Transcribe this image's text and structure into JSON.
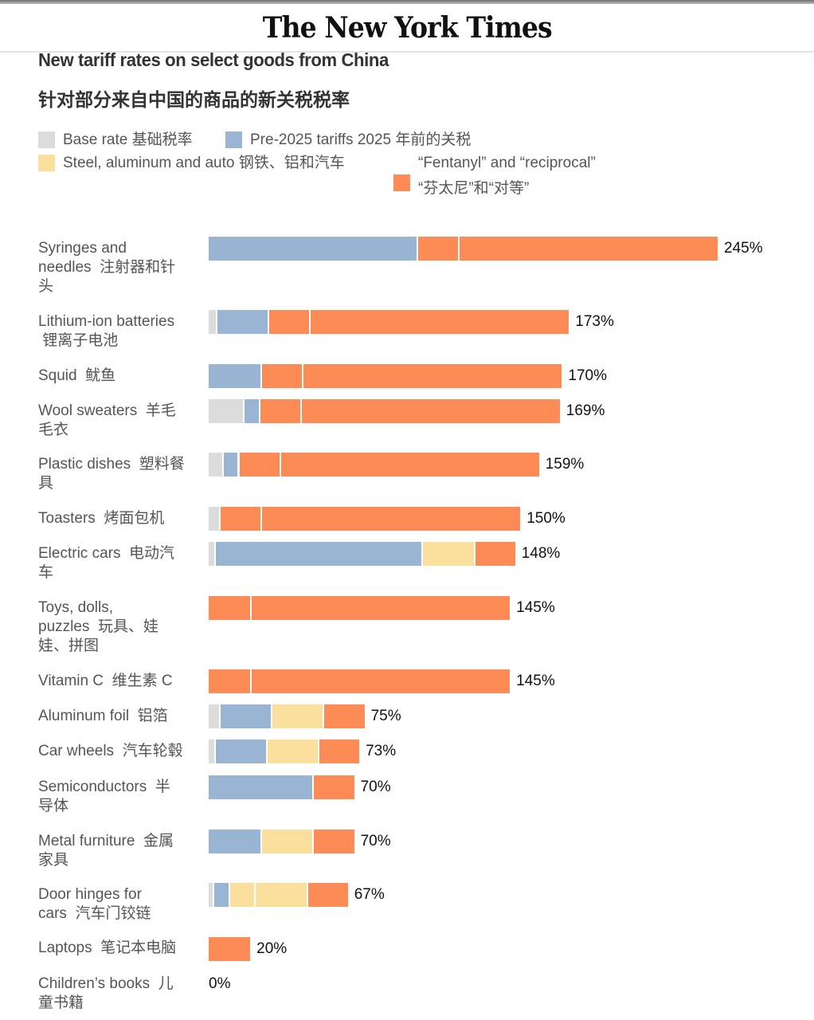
{
  "masthead": {
    "logo": "The New York Times"
  },
  "header": {
    "title": "New tariff rates on select goods from China",
    "subtitle": "针对部分来自中国的商品的新关税税率"
  },
  "colors": {
    "base": "#dcdcdc",
    "pre2025": "#9ab5d4",
    "steel": "#fbdf9c",
    "fentanyl_reciprocal": "#fd8b55",
    "divider": "#ffffff"
  },
  "chart_data": {
    "type": "bar",
    "orientation": "horizontal",
    "stacked": true,
    "title": "New tariff rates on select goods from China",
    "subtitle": "针对部分来自中国的商品的新关税税率",
    "xlabel": "",
    "ylabel": "",
    "xlim": [
      0,
      245
    ],
    "grid": false,
    "legend_position": "top-left",
    "legend": [
      {
        "key": "base",
        "label": "Base rate  基础税率"
      },
      {
        "key": "pre2025",
        "label": "Pre-2025 tariffs  2025 年前的关税"
      },
      {
        "key": "steel",
        "label": "Steel, aluminum and auto  钢铁、铝和汽车"
      },
      {
        "key": "fentanyl_reciprocal",
        "label": "“Fentanyl” and “reciprocal”",
        "label2": "“芬太尼”和“对等”"
      }
    ],
    "categories": [
      "Syringes and needles  注射器和针头",
      "Lithium-ion batteries  锂离子电池",
      "Squid  鱿鱼",
      "Wool sweaters  羊毛毛衣",
      "Plastic dishes  塑料餐具",
      "Toasters  烤面包机",
      "Electric cars  电动汽车",
      "Toys, dolls, puzzles  玩具、娃娃、拼图",
      "Vitamin C  维生素 C",
      "Aluminum foil  铝箔",
      "Car wheels  汽车轮毂",
      "Semiconductors  半导体",
      "Metal furniture  金属家具",
      "Door hinges for cars  汽车门铰链",
      "Laptops  笔记本电脑",
      "Children’s books  儿童书籍"
    ],
    "rows": [
      {
        "label": "Syringes and needles  注射器和针头",
        "total_label": "245%",
        "segments": [
          {
            "key": "pre2025",
            "value": 100
          },
          {
            "key": "fentanyl_reciprocal",
            "value": 20
          },
          {
            "key": "fentanyl_reciprocal",
            "value": 125
          }
        ]
      },
      {
        "label": "Lithium-ion batteries  锂离子电池",
        "total_label": "173%",
        "segments": [
          {
            "key": "base",
            "value": 3.4
          },
          {
            "key": "pre2025",
            "value": 25
          },
          {
            "key": "fentanyl_reciprocal",
            "value": 20
          },
          {
            "key": "fentanyl_reciprocal",
            "value": 125
          }
        ]
      },
      {
        "label": "Squid  鱿鱼",
        "total_label": "170%",
        "segments": [
          {
            "key": "pre2025",
            "value": 25
          },
          {
            "key": "fentanyl_reciprocal",
            "value": 20
          },
          {
            "key": "fentanyl_reciprocal",
            "value": 125
          }
        ]
      },
      {
        "label": "Wool sweaters  羊毛毛衣",
        "total_label": "169%",
        "segments": [
          {
            "key": "base",
            "value": 16.5
          },
          {
            "key": "pre2025",
            "value": 7.5
          },
          {
            "key": "fentanyl_reciprocal",
            "value": 20
          },
          {
            "key": "fentanyl_reciprocal",
            "value": 125
          }
        ]
      },
      {
        "label": "Plastic dishes  塑料餐具",
        "total_label": "159%",
        "segments": [
          {
            "key": "base",
            "value": 6.5
          },
          {
            "key": "pre2025",
            "value": 7.5
          },
          {
            "key": "fentanyl_reciprocal",
            "value": 20
          },
          {
            "key": "fentanyl_reciprocal",
            "value": 125
          }
        ]
      },
      {
        "label": "Toasters  烤面包机",
        "total_label": "150%",
        "segments": [
          {
            "key": "base",
            "value": 5
          },
          {
            "key": "fentanyl_reciprocal",
            "value": 20
          },
          {
            "key": "fentanyl_reciprocal",
            "value": 125
          }
        ]
      },
      {
        "label": "Electric cars  电动汽车",
        "total_label": "148%",
        "segments": [
          {
            "key": "base",
            "value": 2.5
          },
          {
            "key": "pre2025",
            "value": 100
          },
          {
            "key": "steel",
            "value": 25
          },
          {
            "key": "fentanyl_reciprocal",
            "value": 20
          }
        ]
      },
      {
        "label": "Toys, dolls, puzzles  玩具、娃娃、拼图",
        "total_label": "145%",
        "segments": [
          {
            "key": "fentanyl_reciprocal",
            "value": 20
          },
          {
            "key": "fentanyl_reciprocal",
            "value": 125
          }
        ]
      },
      {
        "label": "Vitamin C  维生素 C",
        "total_label": "145%",
        "segments": [
          {
            "key": "fentanyl_reciprocal",
            "value": 20
          },
          {
            "key": "fentanyl_reciprocal",
            "value": 125
          }
        ]
      },
      {
        "label": "Aluminum foil  铝箔",
        "total_label": "75%",
        "segments": [
          {
            "key": "base",
            "value": 5
          },
          {
            "key": "pre2025",
            "value": 25
          },
          {
            "key": "steel",
            "value": 25
          },
          {
            "key": "fentanyl_reciprocal",
            "value": 20
          }
        ]
      },
      {
        "label": "Car wheels  汽车轮毂",
        "total_label": "73%",
        "segments": [
          {
            "key": "base",
            "value": 2.5
          },
          {
            "key": "pre2025",
            "value": 25
          },
          {
            "key": "steel",
            "value": 25
          },
          {
            "key": "fentanyl_reciprocal",
            "value": 20
          }
        ]
      },
      {
        "label": "Semiconductors  半导体",
        "total_label": "70%",
        "segments": [
          {
            "key": "pre2025",
            "value": 50
          },
          {
            "key": "fentanyl_reciprocal",
            "value": 20
          }
        ]
      },
      {
        "label": "Metal furniture  金属家具",
        "total_label": "70%",
        "segments": [
          {
            "key": "pre2025",
            "value": 25
          },
          {
            "key": "steel",
            "value": 25
          },
          {
            "key": "fentanyl_reciprocal",
            "value": 20
          }
        ]
      },
      {
        "label": "Door hinges for cars  汽车门铰链",
        "total_label": "67%",
        "segments": [
          {
            "key": "base",
            "value": 2
          },
          {
            "key": "pre2025",
            "value": 7.5
          },
          {
            "key": "steel",
            "value": 12.5
          },
          {
            "key": "steel",
            "value": 25
          },
          {
            "key": "fentanyl_reciprocal",
            "value": 20
          }
        ]
      },
      {
        "label": "Laptops  笔记本电脑",
        "total_label": "20%",
        "segments": [
          {
            "key": "fentanyl_reciprocal",
            "value": 20
          }
        ]
      },
      {
        "label": "Children’s books  儿童书籍",
        "total_label": "0%",
        "segments": []
      }
    ]
  },
  "row_labels_wrapped": [
    [
      "Syringes and",
      "needles  注射器和针",
      "头"
    ],
    [
      "Lithium-ion batteries",
      " 锂离子电池"
    ],
    [
      "Squid  鱿鱼"
    ],
    [
      "Wool sweaters  羊毛",
      "毛衣"
    ],
    [
      "Plastic dishes  塑料餐",
      "具"
    ],
    [
      "Toasters  烤面包机"
    ],
    [
      "Electric cars  电动汽",
      "车"
    ],
    [
      "Toys, dolls,",
      "puzzles  玩具、娃",
      "娃、拼图"
    ],
    [
      "Vitamin C  维生素 C"
    ],
    [
      "Aluminum foil  铝箔"
    ],
    [
      "Car wheels  汽车轮毂"
    ],
    [
      "Semiconductors  半",
      "导体"
    ],
    [
      "Metal furniture  金属",
      "家具"
    ],
    [
      "Door hinges for",
      "cars  汽车门铰链"
    ],
    [
      "Laptops  笔记本电脑"
    ],
    [
      "Children’s books  儿",
      "童书籍"
    ]
  ]
}
